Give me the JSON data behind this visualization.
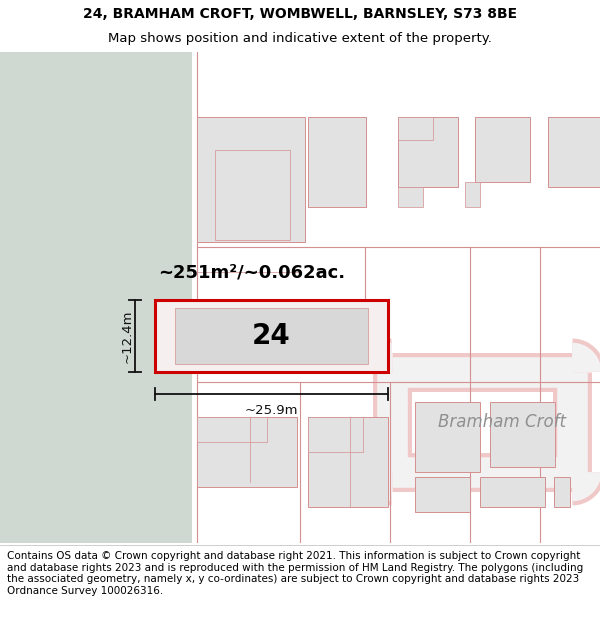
{
  "title_line1": "24, BRAMHAM CROFT, WOMBWELL, BARNSLEY, S73 8BE",
  "title_line2": "Map shows position and indicative extent of the property.",
  "footer_text": "Contains OS data © Crown copyright and database right 2021. This information is subject to Crown copyright and database rights 2023 and is reproduced with the permission of HM Land Registry. The polygons (including the associated geometry, namely x, y co-ordinates) are subject to Crown copyright and database rights 2023 Ordnance Survey 100026316.",
  "map_bg": "#f2f2f2",
  "green_area_color": "#cfd9d2",
  "building_fill": "#e2e2e2",
  "building_stroke": "#d49090",
  "road_color": "#f0c8c8",
  "highlight_stroke": "#cc0000",
  "dim_line_color": "#111111",
  "area_text": "~251m²/~0.062ac.",
  "number_text": "24",
  "dim_width": "~25.9m",
  "dim_height": "~12.4m",
  "road_label": "Bramham Croft",
  "title_fontsize": 10,
  "footer_fontsize": 7.5
}
